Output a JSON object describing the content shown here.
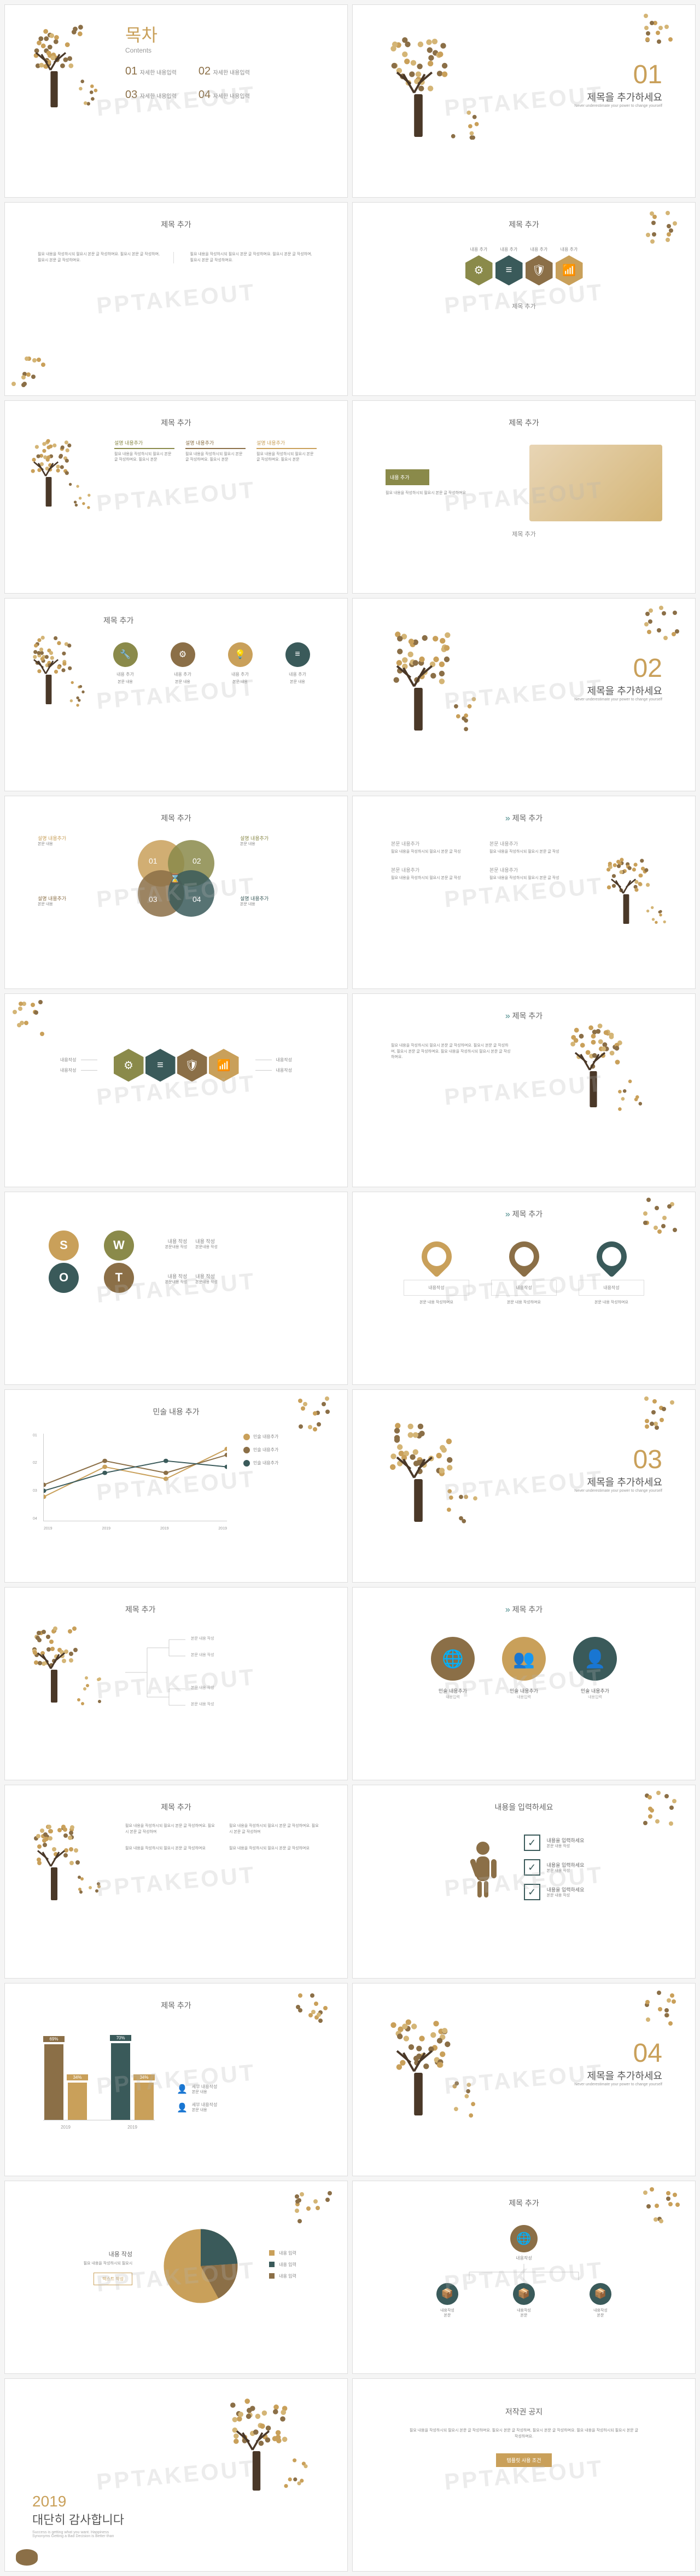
{
  "watermark": "PPTAKEOUT",
  "colors": {
    "gold": "#c9a05a",
    "brown": "#8b6f47",
    "darkbrown": "#6b5139",
    "teal": "#4a7a7a",
    "darkteal": "#3a5a5a",
    "olive": "#8a8a4a",
    "trunk": "#4a3828",
    "leaf1": "#c9a05a",
    "leaf2": "#d4b576",
    "leaf3": "#8b6f47"
  },
  "slides": [
    {
      "type": "contents",
      "title_kr": "목차",
      "title_en": "Contents",
      "items": [
        {
          "num": "01",
          "label": "자세한 내용입력"
        },
        {
          "num": "02",
          "label": "자세한 내용입력"
        },
        {
          "num": "03",
          "label": "자세한 내용입력"
        },
        {
          "num": "04",
          "label": "자세한 내용입력"
        }
      ]
    },
    {
      "type": "section",
      "num": "01",
      "title": "제목을 추가하세요",
      "subtitle": "Never underestimate your power to change yourself"
    },
    {
      "type": "text-split",
      "title": "제목 추가",
      "left": "필요 내용을 작성하시되 필요시 본문 글 작성하며요. 필요시 본문 글 작성하며, 필요시 본문 글 작성하며요.",
      "right": "필요 내용을 작성하시되 필요시 본문 글 작성하며요. 필요시 본문 글 작성하며, 필요시 본문 글 작성하며요."
    },
    {
      "type": "hexagons",
      "title": "제목 추가",
      "items": [
        {
          "label": "내용 추가",
          "color": "#8a8a4a",
          "icon": "⚙"
        },
        {
          "label": "내용 추가",
          "color": "#3a5a5a",
          "icon": "≡"
        },
        {
          "label": "내용 추가",
          "color": "#8b6f47",
          "icon": "🛡"
        },
        {
          "label": "내용 추가",
          "color": "#c9a05a",
          "icon": "📶"
        }
      ],
      "footer": "제목 추가"
    },
    {
      "type": "three-col",
      "title": "제목 추가",
      "items": [
        {
          "label": "설명 내용추가",
          "color": "#8a8a4a"
        },
        {
          "label": "설명 내용추가",
          "color": "#8b6f47"
        },
        {
          "label": "설명 내용추가",
          "color": "#c9a05a"
        }
      ]
    },
    {
      "type": "image-side",
      "title": "제목 추가",
      "box_label": "내용 추가",
      "footer": "제목 추가"
    },
    {
      "type": "icon-row",
      "title": "제목 추가",
      "items": [
        {
          "label": "내용 추가",
          "color": "#8a8a4a",
          "icon": "🔧"
        },
        {
          "label": "내용 추가",
          "color": "#8b6f47",
          "icon": "⚙"
        },
        {
          "label": "내용 추가",
          "color": "#c9a05a",
          "icon": "💡"
        },
        {
          "label": "내용 추가",
          "color": "#3a5a5a",
          "icon": "≡"
        }
      ]
    },
    {
      "type": "section",
      "num": "02",
      "title": "제목을 추가하세요",
      "subtitle": "Never underestimate your power to change yourself"
    },
    {
      "type": "venn4",
      "title": "제목 추가",
      "items": [
        {
          "num": "01",
          "label": "설명 내용추가",
          "color": "#c9a05a"
        },
        {
          "num": "02",
          "label": "설명 내용추가",
          "color": "#8a8a4a"
        },
        {
          "num": "03",
          "label": "설명 내용추가",
          "color": "#8b6f47"
        },
        {
          "num": "04",
          "label": "설명 내용추가",
          "color": "#3a5a5a"
        }
      ]
    },
    {
      "type": "text-4box",
      "title": "제목 추가",
      "items": [
        {
          "label": "본문 내용추가"
        },
        {
          "label": "본문 내용추가"
        },
        {
          "label": "본문 내용추가"
        },
        {
          "label": "본문 내용추가"
        }
      ]
    },
    {
      "type": "hex-flow",
      "items": [
        {
          "label": "내용작성",
          "color": "#8a8a4a",
          "icon": "⚙"
        },
        {
          "label": "내용작성",
          "color": "#3a5a5a",
          "icon": "≡"
        },
        {
          "label": "내용작성",
          "color": "#8b6f47",
          "icon": "🛡"
        },
        {
          "label": "내용작성",
          "color": "#c9a05a",
          "icon": "📶"
        }
      ]
    },
    {
      "type": "text-tree",
      "title": "제목 추가"
    },
    {
      "type": "swot",
      "items": [
        {
          "letter": "S",
          "label": "내용 작성",
          "color": "#c9a05a"
        },
        {
          "letter": "W",
          "label": "내용 작성",
          "color": "#8a8a4a"
        },
        {
          "letter": "O",
          "label": "내용 작성",
          "color": "#3a5a5a"
        },
        {
          "letter": "T",
          "label": "내용 작성",
          "color": "#8b6f47"
        }
      ]
    },
    {
      "type": "drops",
      "title": "제목 추가",
      "items": [
        {
          "label": "내용작성",
          "color": "#c9a05a"
        },
        {
          "label": "내용작성",
          "color": "#8b6f47"
        },
        {
          "label": "내용작성",
          "color": "#3a5a5a"
        }
      ]
    },
    {
      "type": "line-chart",
      "title": "민술 내용 추가",
      "x_labels": [
        "2019",
        "2019",
        "2019",
        "2019"
      ],
      "y_labels": [
        "01",
        "02",
        "03",
        "04"
      ],
      "series": [
        {
          "label": "민술 내용추가",
          "color": "#c9a05a",
          "data": [
            20,
            45,
            35,
            60
          ]
        },
        {
          "label": "민술 내용추가",
          "color": "#8b6f47",
          "data": [
            30,
            50,
            40,
            55
          ]
        },
        {
          "label": "민술 내용추가",
          "color": "#3a5a5a",
          "data": [
            25,
            40,
            50,
            45
          ]
        }
      ]
    },
    {
      "type": "section",
      "num": "03",
      "title": "제목을 추가하세요",
      "subtitle": "Never underestimate your power to change yourself"
    },
    {
      "type": "bracket-diagram",
      "title": "제목 추가"
    },
    {
      "type": "big-circles",
      "title": "제목 추가",
      "items": [
        {
          "label": "민술 내용추가",
          "sublabel": "내용입력",
          "color": "#8b6f47",
          "icon": "🌐"
        },
        {
          "label": "민술 내용추가",
          "sublabel": "내용입력",
          "color": "#c9a05a",
          "icon": "👥"
        },
        {
          "label": "민술 내용추가",
          "sublabel": "내용입력",
          "color": "#3a5a5a",
          "icon": "👤"
        }
      ]
    },
    {
      "type": "text-cols",
      "title": "제목 추가"
    },
    {
      "type": "checklist",
      "title": "내용을 입력하세요",
      "items": [
        {
          "label": "내용을 입력하세요"
        },
        {
          "label": "내용을 입력하세요"
        },
        {
          "label": "내용을 입력하세요"
        }
      ]
    },
    {
      "type": "bar-chart",
      "title": "제목 추가",
      "groups": [
        "2019",
        "2019"
      ],
      "bars": [
        {
          "values": [
            69,
            34
          ],
          "colors": [
            "#8b6f47",
            "#c9a05a"
          ]
        },
        {
          "values": [
            70,
            34
          ],
          "colors": [
            "#3a5a5a",
            "#c9a05a"
          ]
        }
      ],
      "legend": [
        {
          "label": "세부 내용작성",
          "icon": "👤"
        },
        {
          "label": "세부 내용작성",
          "icon": "👤"
        }
      ]
    },
    {
      "type": "section",
      "num": "04",
      "title": "제목을 추가하세요",
      "subtitle": "Never underestimate your power to change yourself"
    },
    {
      "type": "pie-chart",
      "title": "내용 작성",
      "segments": [
        {
          "label": "내용 입력",
          "value": 58,
          "color": "#c9a05a"
        },
        {
          "label": "내용 입력",
          "value": 24,
          "color": "#3a5a5a"
        },
        {
          "label": "내용 입력",
          "value": 18,
          "color": "#8b6f47"
        }
      ],
      "button": "텍스트 작성"
    },
    {
      "type": "org-chart",
      "title": "제목 추가",
      "root": {
        "label": "내용작성",
        "color": "#8b6f47",
        "icon": "🌐"
      },
      "children": [
        {
          "label": "내용작성",
          "color": "#3a5a5a",
          "icon": "📦"
        },
        {
          "label": "내용작성",
          "color": "#3a5a5a",
          "icon": "📦"
        },
        {
          "label": "내용작성",
          "color": "#3a5a5a",
          "icon": "📦"
        }
      ]
    },
    {
      "type": "thanks",
      "year": "2019",
      "title": "대단히 감사합니다",
      "subtitle": "Success is getting what you want. Happiness\nSynonyms Getting a Bad Decision is Better than"
    },
    {
      "type": "copyright",
      "title": "저작권 공지",
      "button": "템플릿 사용 조건"
    }
  ]
}
